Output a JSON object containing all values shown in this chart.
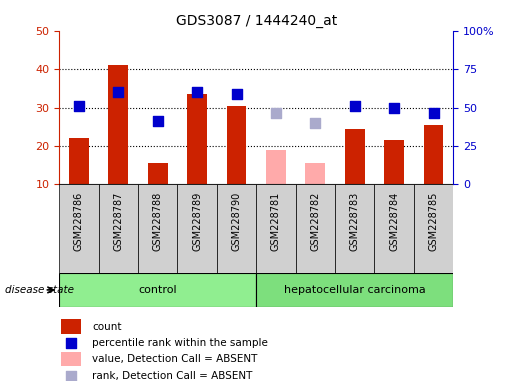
{
  "title": "GDS3087 / 1444240_at",
  "samples": [
    "GSM228786",
    "GSM228787",
    "GSM228788",
    "GSM228789",
    "GSM228790",
    "GSM228781",
    "GSM228782",
    "GSM228783",
    "GSM228784",
    "GSM228785"
  ],
  "count_values": [
    22,
    41,
    15.5,
    33.5,
    30.5,
    null,
    null,
    24.5,
    21.5,
    25.5
  ],
  "absent_count_values": [
    null,
    null,
    null,
    null,
    null,
    19,
    15.5,
    null,
    null,
    null
  ],
  "percentile_values": [
    30.5,
    34,
    26.5,
    34,
    33.5,
    null,
    null,
    30.5,
    30,
    28.5
  ],
  "absent_percentile_values": [
    null,
    null,
    null,
    null,
    null,
    28.5,
    26,
    null,
    null,
    null
  ],
  "ylim_left": [
    10,
    50
  ],
  "ylim_right": [
    0,
    100
  ],
  "yticks_left": [
    10,
    20,
    30,
    40,
    50
  ],
  "yticks_right": [
    0,
    25,
    50,
    75,
    100
  ],
  "ytick_labels_right": [
    "0",
    "25",
    "50",
    "75",
    "100%"
  ],
  "bar_color_present": "#cc2200",
  "bar_color_absent": "#ffaaaa",
  "dot_color_present": "#0000cc",
  "dot_color_absent": "#aaaacc",
  "n_control": 5,
  "n_carcinoma": 5,
  "control_label": "control",
  "carcinoma_label": "hepatocellular carcinoma",
  "disease_state_label": "disease state",
  "legend_items": [
    {
      "label": "count",
      "color": "#cc2200",
      "type": "bar"
    },
    {
      "label": "percentile rank within the sample",
      "color": "#0000cc",
      "type": "dot"
    },
    {
      "label": "value, Detection Call = ABSENT",
      "color": "#ffaaaa",
      "type": "bar"
    },
    {
      "label": "rank, Detection Call = ABSENT",
      "color": "#aaaacc",
      "type": "dot"
    }
  ],
  "bar_width": 0.5,
  "dot_size": 55,
  "grid_color": "black",
  "grid_linestyle": ":",
  "grid_linewidth": 0.8,
  "gray_bg": "#d0d0d0",
  "green_control": "#90ee90",
  "green_carcinoma": "#7ddf7d",
  "label_fontsize": 8,
  "tick_fontsize": 8
}
